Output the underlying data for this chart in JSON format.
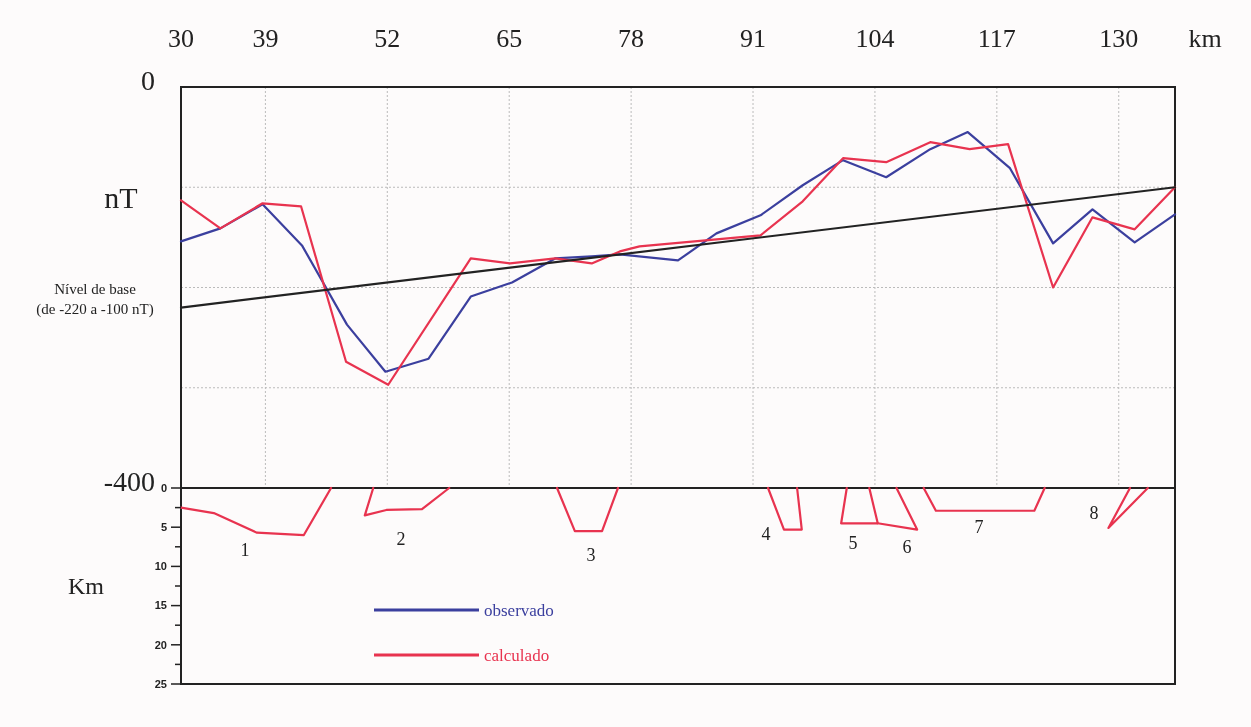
{
  "chart_data": [
    {
      "type": "line",
      "xlabel": "km",
      "ylabel": "nT",
      "xlim": [
        30,
        136
      ],
      "xticks": [
        30,
        39,
        52,
        65,
        78,
        91,
        104,
        117,
        130
      ],
      "ylim": [
        -400,
        0
      ],
      "yticks": [
        {
          "value": -400,
          "label": "-400"
        },
        {
          "value": -300,
          "label": null
        },
        {
          "value": -200,
          "label": null
        },
        {
          "value": -100,
          "label": null
        },
        0
      ],
      "grid": true,
      "legend": "bottom",
      "annotations": [
        {
          "text": "Nível de base\n(de -220 a -100 nT)",
          "x": 30,
          "y": -220
        }
      ],
      "series": [
        {
          "name": "observado",
          "color": "#3b3f9e",
          "x": [
            30,
            34.2,
            38.7,
            42.9,
            47.7,
            51.8,
            56.4,
            60.9,
            65.3,
            69.9,
            73.8,
            76.8,
            83.0,
            87.1,
            91.8,
            96.3,
            100.6,
            105.2,
            109.9,
            113.9,
            118.4,
            123.0,
            127.2,
            131.7,
            136
          ],
          "values": [
            -154,
            -141,
            -117,
            -158,
            -237,
            -284,
            -271,
            -209,
            -195,
            -171,
            -169,
            -167,
            -173,
            -146,
            -128,
            -98,
            -73,
            -90,
            -62,
            -45,
            -81,
            -156,
            -122,
            -155,
            -127
          ]
        },
        {
          "name": "calculado",
          "color": "#e8334f",
          "x": [
            30,
            34.2,
            38.7,
            42.8,
            47.6,
            52.1,
            60.9,
            65.1,
            69.9,
            73.8,
            76.8,
            78.9,
            91.8,
            96.3,
            100.6,
            105.2,
            109.9,
            114.1,
            118.2,
            123.0,
            127.2,
            131.7,
            136
          ],
          "values": [
            -113,
            -141,
            -116,
            -119,
            -274,
            -297,
            -171,
            -176,
            -171,
            -176,
            -164,
            -159,
            -148,
            -114,
            -71,
            -75,
            -55,
            -62,
            -57,
            -200,
            -130,
            -142,
            -100
          ]
        },
        {
          "color": "#222222",
          "x": [
            30,
            136
          ],
          "values": [
            -220,
            -100
          ]
        }
      ]
    },
    {
      "type": "line",
      "ylabel": "Km",
      "xlim": [
        30,
        136
      ],
      "ylim": [
        25,
        0
      ],
      "yticks": [
        0,
        {
          "value": 2.5,
          "label": null
        },
        5,
        {
          "value": 7.5,
          "label": null
        },
        10,
        {
          "value": 12.5,
          "label": null
        },
        15,
        {
          "value": 17.5,
          "label": null
        },
        20,
        {
          "value": 22.5,
          "label": null
        },
        25
      ],
      "tick_labels": "y",
      "annotations": [
        "1",
        "2",
        "3",
        "4",
        "5",
        "6",
        "7",
        "8"
      ],
      "series": [
        {
          "color": "#e8334f",
          "x": [
            30,
            33.5,
            38.1,
            43.1,
            46.0
          ],
          "values": [
            2.5,
            3.2,
            5.7,
            6.0,
            0
          ]
        },
        {
          "color": "#e8334f",
          "x": [
            50.5,
            49.6,
            51.9,
            55.7,
            58.6
          ],
          "values": [
            0,
            3.5,
            2.8,
            2.7,
            0
          ]
        },
        {
          "color": "#e8334f",
          "x": [
            70.1,
            72.0,
            74.9,
            76.6
          ],
          "values": [
            0,
            5.5,
            5.5,
            0
          ]
        },
        {
          "color": "#e8334f",
          "x": [
            92.6,
            94.3,
            96.2,
            95.7
          ],
          "values": [
            0,
            5.3,
            5.3,
            0
          ]
        },
        {
          "color": "#e8334f",
          "x": [
            101.0,
            100.4,
            104.3,
            103.4
          ],
          "values": [
            0,
            4.5,
            4.5,
            0
          ]
        },
        {
          "color": "#e8334f",
          "x": [
            104.3,
            108.5,
            106.3
          ],
          "values": [
            4.5,
            5.3,
            0
          ]
        },
        {
          "color": "#e8334f",
          "x": [
            109.2,
            110.5,
            121.0,
            122.1
          ],
          "values": [
            0,
            2.9,
            2.9,
            0
          ]
        },
        {
          "color": "#e8334f",
          "x": [
            131.2,
            128.9,
            133.1
          ],
          "values": [
            0,
            5.1,
            0
          ]
        }
      ]
    }
  ]
}
